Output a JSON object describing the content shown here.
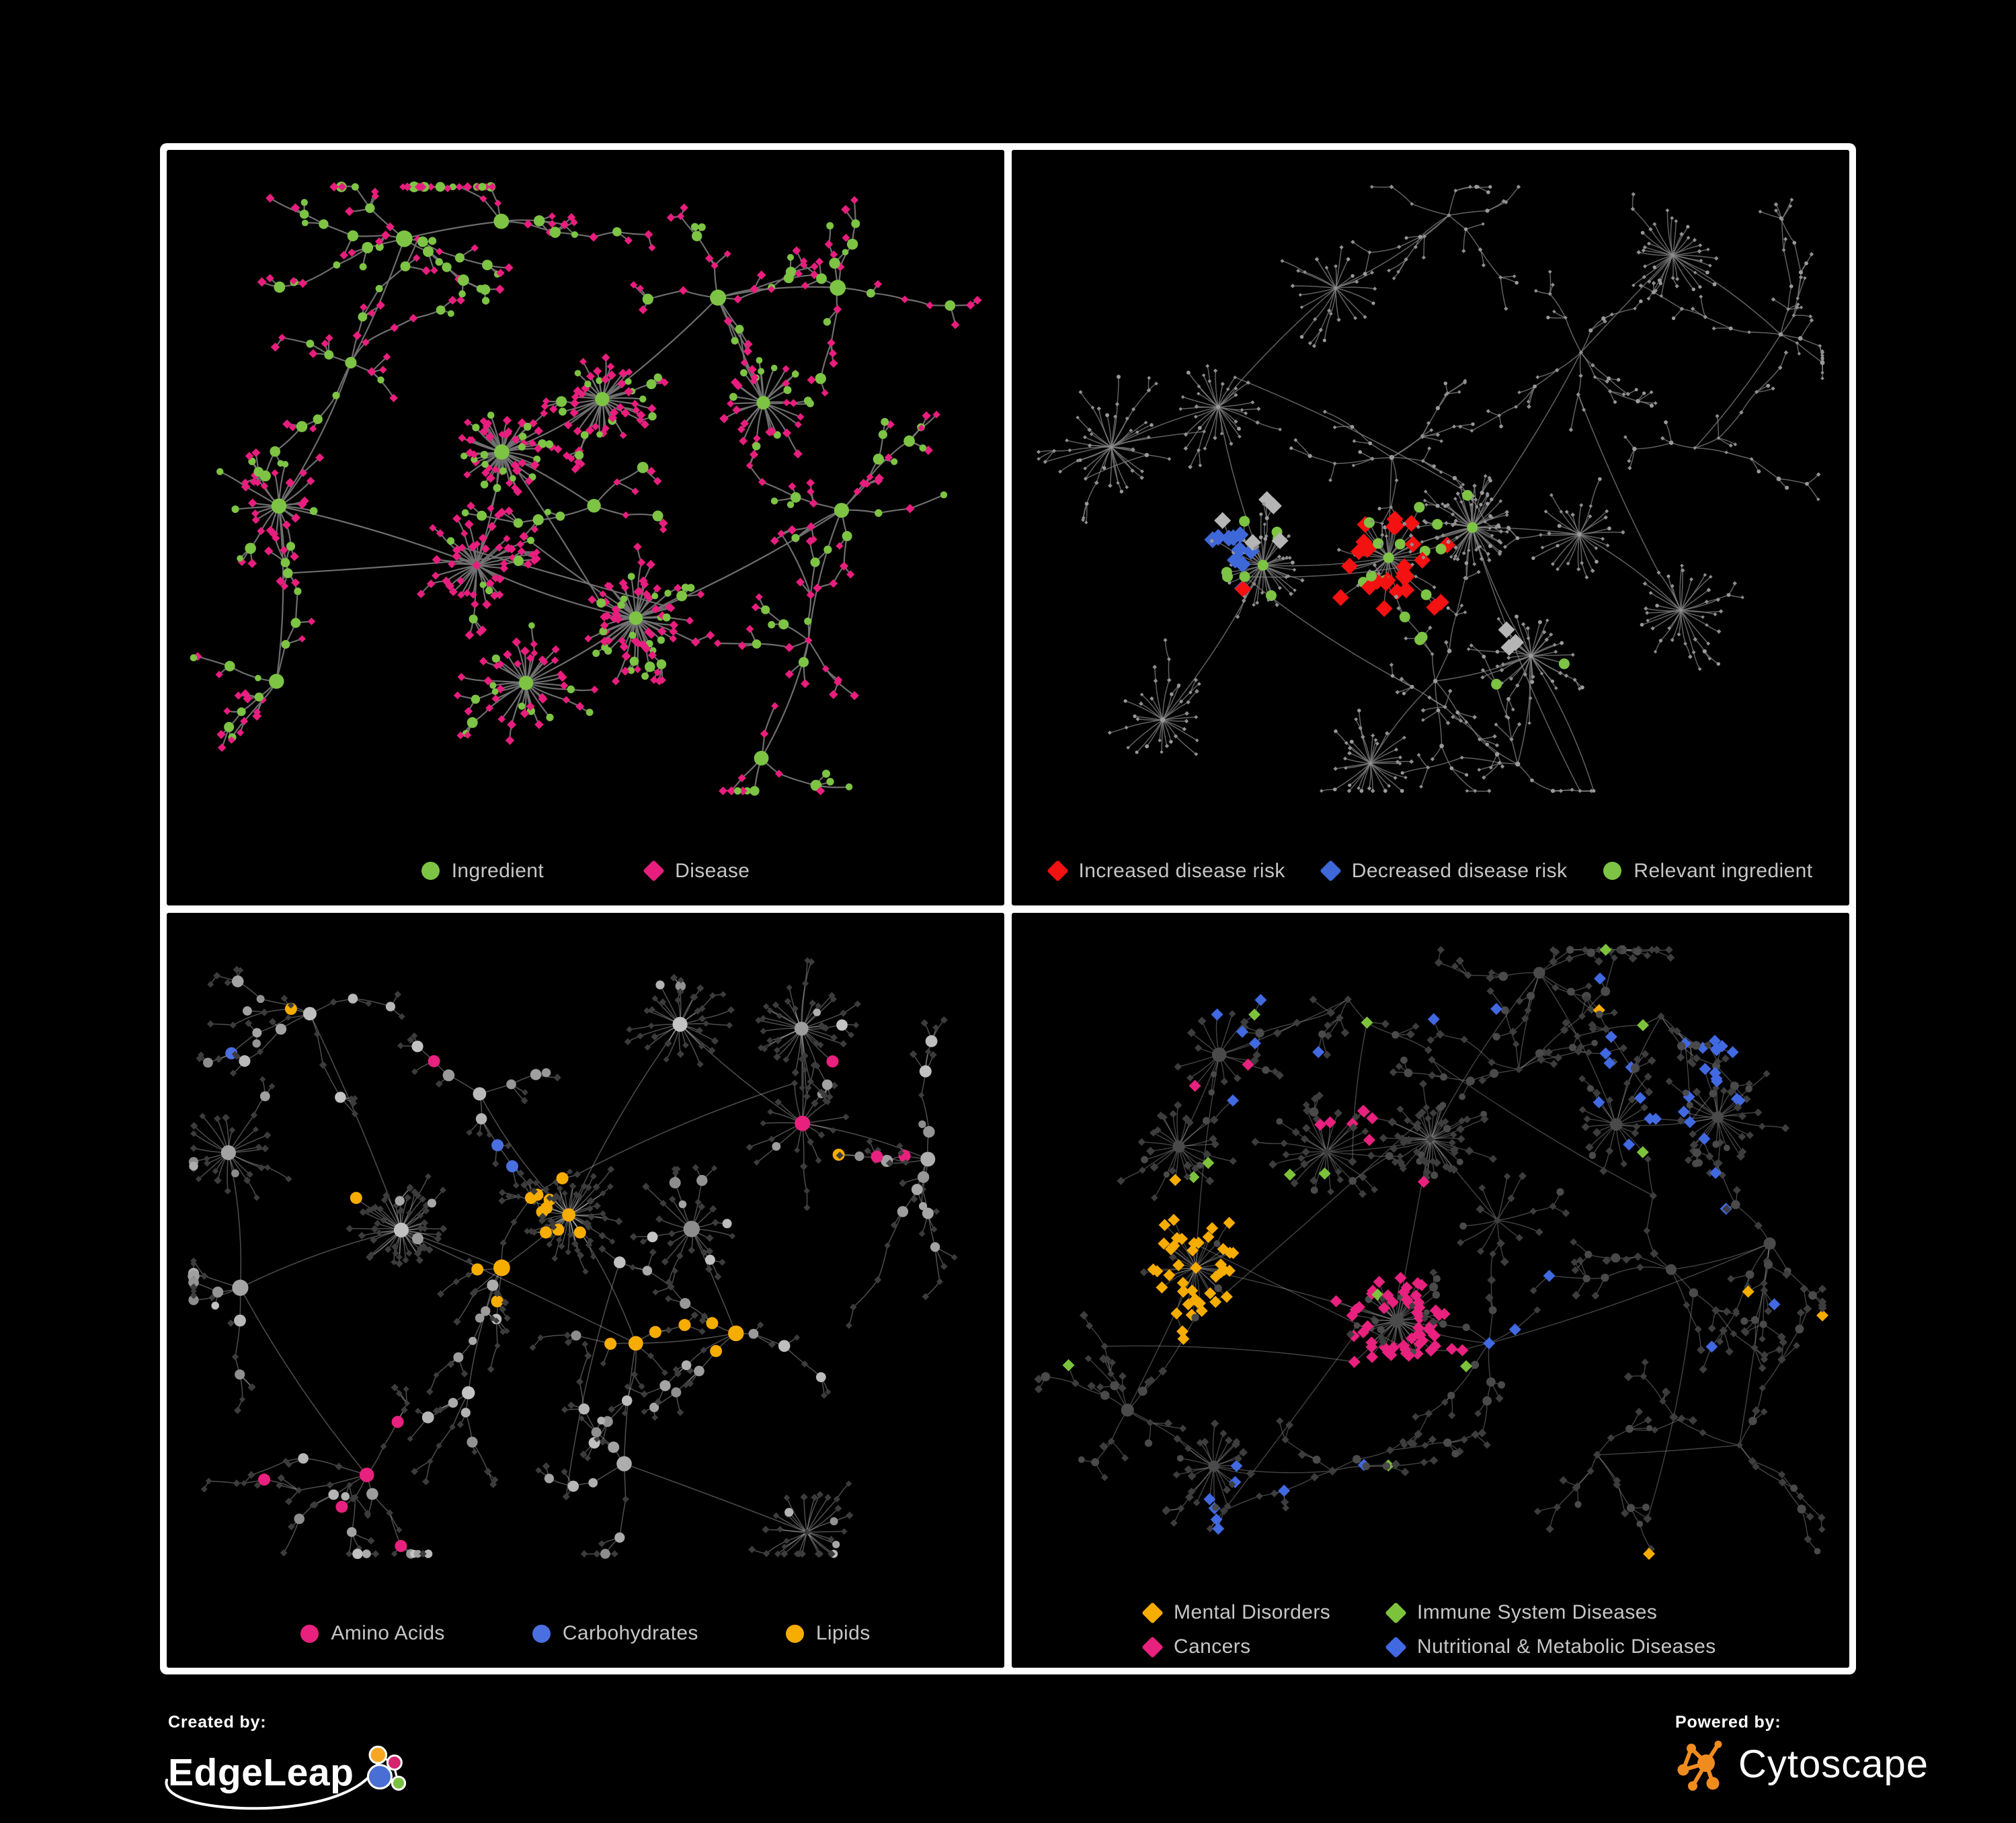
{
  "page": {
    "background": "#000000",
    "frame_color": "#FFFFFF",
    "panel_background": "#000000",
    "legend_text_color": "#C6C6C6"
  },
  "panels": [
    {
      "id": "ingredient-disease",
      "legend_layout": "row",
      "legend": [
        {
          "label": "Ingredient",
          "shape": "circle",
          "color": "#7DC344"
        },
        {
          "label": "Disease",
          "shape": "diamond",
          "color": "#E81E7E"
        }
      ],
      "network": {
        "type": "node-link-graph",
        "seed": 11,
        "clusters": 17,
        "cores": [
          [
            0.4,
            0.4
          ],
          [
            0.52,
            0.33
          ],
          [
            0.37,
            0.55
          ],
          [
            0.56,
            0.62
          ]
        ],
        "hubCircleP": 0.78,
        "leafCircleP": 0.22,
        "edge": {
          "color": "rgba(115,115,115,0.95)",
          "width": 2.2
        },
        "circle": {
          "color": "#7DC344",
          "rHub": [
            8.5,
            4
          ],
          "rMid": [
            6.5,
            2
          ],
          "rLeaf": [
            4.8,
            1.4
          ]
        },
        "diamond": {
          "color": "#E81E7E",
          "s": [
            5.4,
            1.6
          ]
        }
      }
    },
    {
      "id": "disease-risk",
      "legend_layout": "row",
      "legend": [
        {
          "label": "Increased disease risk",
          "shape": "diamond",
          "color": "#F31111"
        },
        {
          "label": "Decreased disease risk",
          "shape": "diamond",
          "color": "#3E68D8"
        },
        {
          "label": "Relevant ingredient",
          "shape": "circle",
          "color": "#7DC344"
        }
      ],
      "network": {
        "type": "node-link-graph",
        "seed": 83,
        "clusters": 19,
        "cores": [
          [
            0.45,
            0.54
          ],
          [
            0.3,
            0.55
          ],
          [
            0.55,
            0.5
          ],
          [
            0.62,
            0.67
          ]
        ],
        "hubCircleP": 0.5,
        "leafCircleP": 0.2,
        "edge": {
          "color": "rgba(130,130,130,0.75)",
          "width": 1.5
        },
        "circle": {
          "color": "#9A9A9A",
          "rHub": [
            3,
            0.8
          ],
          "rMid": [
            2.8,
            0.6
          ],
          "rLeaf": [
            2.5,
            0.5
          ]
        },
        "diamond": {
          "color": "#8F8F8F",
          "s": [
            2.7,
            0.7
          ]
        },
        "bigCircleR": 8,
        "bigDiamondS": 12.5,
        "zones": [
          {
            "shape": "diamond",
            "color": "#F31111",
            "cap": 28,
            "anchors": [
              [
                0.4,
                0.54,
                0.1,
                0.5
              ],
              [
                0.5,
                0.58,
                0.1,
                0.5
              ],
              [
                0.33,
                0.56,
                0.06,
                0.5
              ],
              [
                0.57,
                0.63,
                0.07,
                0.55
              ],
              [
                0.63,
                0.55,
                0.05,
                0.55
              ],
              [
                0.73,
                0.73,
                0.06,
                0.6
              ],
              [
                0.42,
                0.44,
                0.05,
                0.6
              ]
            ]
          },
          {
            "shape": "diamond",
            "color": "#3E68D8",
            "cap": 10,
            "anchors": [
              [
                0.27,
                0.55,
                0.06,
                0.7
              ],
              [
                0.83,
                0.36,
                0.035,
                0.95
              ],
              [
                0.3,
                0.61,
                0.04,
                0.55
              ]
            ]
          },
          {
            "shape": "diamond",
            "color": "#B5B5B5",
            "cap": 8,
            "anchors": [
              [
                0.28,
                0.5,
                0.05,
                0.5
              ],
              [
                0.55,
                0.66,
                0.06,
                0.45
              ],
              [
                0.3,
                0.7,
                0.035,
                0.6
              ],
              [
                0.6,
                0.72,
                0.04,
                0.45
              ]
            ]
          },
          {
            "shape": "circle",
            "color": "#7DC344",
            "cap": 30,
            "scatter": 0.004,
            "anchors": [
              [
                0.47,
                0.55,
                0.12,
                0.5
              ],
              [
                0.31,
                0.55,
                0.08,
                0.5
              ],
              [
                0.6,
                0.68,
                0.06,
                0.5
              ],
              [
                0.78,
                0.82,
                0.05,
                0.6
              ],
              [
                0.85,
                0.46,
                0.04,
                0.7
              ],
              [
                0.17,
                0.64,
                0.04,
                0.6
              ]
            ]
          }
        ]
      }
    },
    {
      "id": "nutrient-classes",
      "legend_layout": "row",
      "legend": [
        {
          "label": "Amino Acids",
          "shape": "circle",
          "color": "#E8217E"
        },
        {
          "label": "Carbohydrates",
          "shape": "circle",
          "color": "#4A6FE0"
        },
        {
          "label": "Lipids",
          "shape": "circle",
          "color": "#F7AC00"
        }
      ],
      "network": {
        "type": "node-link-graph",
        "seed": 47,
        "clusters": 18,
        "cores": [
          [
            0.48,
            0.4
          ],
          [
            0.4,
            0.47
          ],
          [
            0.56,
            0.57
          ],
          [
            0.28,
            0.42
          ]
        ],
        "hubCircleP": 0.9,
        "leafCircleP": 0.08,
        "edge": {
          "color": "rgba(205,205,205,0.38)",
          "width": 1.5
        },
        "circle": {
          "jitter": true,
          "rHub": [
            9.5,
            3.5
          ],
          "rMid": [
            7,
            2
          ],
          "rLeaf": [
            5.5,
            1.5
          ]
        },
        "diamond": {
          "color": "#3C3C3C",
          "s": [
            4.5,
            1.3
          ]
        },
        "bigCircleR": 9,
        "zones": [
          {
            "shape": "circle",
            "color": "#F7AC00",
            "cap": 75,
            "scatter": 0.012,
            "anchors": [
              [
                0.48,
                0.4,
                0.06,
                0.9
              ],
              [
                0.47,
                0.2,
                0.09,
                0.4
              ],
              [
                0.56,
                0.57,
                0.035,
                0.95
              ],
              [
                0.4,
                0.47,
                0.06,
                0.45
              ],
              [
                0.66,
                0.54,
                0.05,
                0.45
              ],
              [
                0.6,
                0.33,
                0.22,
                0.07
              ]
            ]
          },
          {
            "shape": "circle",
            "color": "#4A6FE0",
            "cap": 16,
            "scatter": 0.007,
            "anchors": [
              [
                0.49,
                0.4,
                0.05,
                0.5
              ],
              [
                0.41,
                0.29,
                0.025,
                0.8
              ]
            ]
          },
          {
            "shape": "circle",
            "color": "#E8217E",
            "cap": 22,
            "scatter": 0.02,
            "anchors": [
              [
                0.25,
                0.22,
                0.12,
                0.2
              ],
              [
                0.7,
                0.65,
                0.12,
                0.2
              ],
              [
                0.25,
                0.72,
                0.1,
                0.22
              ],
              [
                0.85,
                0.27,
                0.1,
                0.18
              ]
            ]
          }
        ]
      }
    },
    {
      "id": "disease-categories",
      "legend_layout": "grid",
      "legend": [
        {
          "label": "Mental Disorders",
          "shape": "diamond",
          "color": "#F7AC00"
        },
        {
          "label": "Immune System Diseases",
          "shape": "diamond",
          "color": "#7DC23B"
        },
        {
          "label": "Cancers",
          "shape": "diamond",
          "color": "#E8217E"
        },
        {
          "label": "Nutritional & Metabolic Diseases",
          "shape": "diamond",
          "color": "#4169E1"
        }
      ],
      "network": {
        "type": "node-link-graph",
        "seed": 29,
        "clusters": 21,
        "cores": [
          [
            0.22,
            0.47
          ],
          [
            0.46,
            0.54
          ],
          [
            0.57,
            0.57
          ],
          [
            0.5,
            0.3
          ]
        ],
        "hubCircleP": 0.55,
        "leafCircleP": 0.1,
        "edge": {
          "color": "rgba(160,160,160,0.42)",
          "width": 1.4
        },
        "circle": {
          "color": "#4A4A4A",
          "rHub": [
            8,
            3
          ],
          "rMid": [
            5.5,
            1.5
          ],
          "rLeaf": [
            4.5,
            1.2
          ]
        },
        "diamond": {
          "color": "#3D3D3D",
          "s": [
            5.2,
            1.4
          ]
        },
        "bigDiamondS": 9,
        "zones": [
          {
            "shape": "diamond",
            "color": "#F7AC00",
            "cap": 100,
            "scatter": 0.01,
            "anchors": [
              [
                0.22,
                0.47,
                0.1,
                0.9
              ],
              [
                0.28,
                0.38,
                0.05,
                0.5
              ],
              [
                0.17,
                0.56,
                0.05,
                0.5
              ]
            ]
          },
          {
            "shape": "diamond",
            "color": "#E8217E",
            "cap": 65,
            "scatter": 0.006,
            "anchors": [
              [
                0.45,
                0.54,
                0.07,
                0.75
              ],
              [
                0.5,
                0.6,
                0.05,
                0.6
              ],
              [
                0.88,
                0.27,
                0.045,
                0.8
              ],
              [
                0.4,
                0.28,
                0.04,
                0.4
              ],
              [
                0.5,
                0.79,
                0.05,
                0.4
              ]
            ]
          },
          {
            "shape": "diamond",
            "color": "#7DC23B",
            "cap": 13,
            "scatter": 0.008,
            "anchors": [
              [
                0.37,
                0.45,
                0.12,
                0.1
              ],
              [
                0.55,
                0.55,
                0.1,
                0.07
              ]
            ]
          },
          {
            "shape": "diamond",
            "color": "#4169E1",
            "cap": 95,
            "scatter": 0.018,
            "anchors": [
              [
                0.57,
                0.57,
                0.05,
                0.85
              ],
              [
                0.61,
                0.48,
                0.04,
                0.5
              ],
              [
                0.78,
                0.22,
                0.1,
                0.35
              ],
              [
                0.82,
                0.4,
                0.06,
                0.45
              ],
              [
                0.3,
                0.15,
                0.12,
                0.25
              ],
              [
                0.5,
                0.08,
                0.08,
                0.3
              ],
              [
                0.33,
                0.64,
                0.05,
                0.4
              ],
              [
                0.3,
                0.8,
                0.08,
                0.3
              ],
              [
                0.9,
                0.12,
                0.05,
                0.5
              ]
            ]
          }
        ]
      }
    }
  ],
  "footer": {
    "created_by": {
      "label": "Created by:",
      "brand": "EdgeLeap",
      "logo_colors": {
        "orange": "#F5A623",
        "magenta": "#D6246E",
        "blue": "#4A6FD4",
        "green": "#7AC143"
      }
    },
    "powered_by": {
      "label": "Powered by:",
      "brand": "Cytoscape",
      "logo_color": "#F08C1E"
    }
  }
}
